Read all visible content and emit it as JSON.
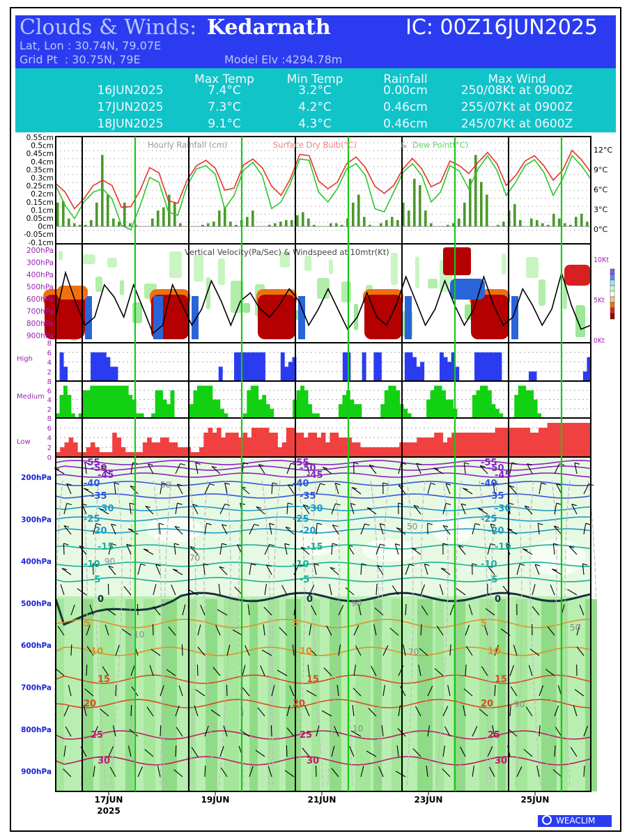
{
  "header": {
    "title_prefix": "Clouds & Winds:",
    "location": "Kedarnath",
    "ic": "IC: 00Z16JUN2025",
    "latlon": "Lat, Lon : 30.74N, 79.07E",
    "grid": "Grid Pt  : 30.75N, 79E",
    "elev": "Model Elv :4294.78m"
  },
  "summary": {
    "headers": [
      "Max Temp",
      "Min Temp",
      "Rainfall",
      "Max Wind"
    ],
    "rows": [
      {
        "date": "16JUN2025",
        "max": "7.4°C",
        "min": "3.2°C",
        "rain": "0.00cm",
        "wind": "250/08Kt at 0900Z"
      },
      {
        "date": "17JUN2025",
        "max": "7.3°C",
        "min": "4.2°C",
        "rain": "0.46cm",
        "wind": "255/07Kt at 0900Z"
      },
      {
        "date": "18JUN2025",
        "max": "9.1°C",
        "min": "4.3°C",
        "rain": "0.46cm",
        "wind": "245/07Kt at 0600Z"
      }
    ]
  },
  "chart_data": [
    {
      "type": "bar",
      "title": "Hourly Rainfall (cm)",
      "ylabel": "cm",
      "ylim": [
        -0.1,
        0.55
      ],
      "yticks": [
        "0.55cm",
        "0.5cm",
        "0.45cm",
        "0.4cm",
        "0.35cm",
        "0.3cm",
        "0.25cm",
        "0.2cm",
        "0.15cm",
        "0.1cm",
        "0.05cm",
        "0cm",
        "-0.05cm",
        "-0.1cm"
      ],
      "values": [
        0.15,
        0.16,
        0.05,
        0.02,
        0.01,
        0.01,
        0.04,
        0.15,
        0.45,
        0.2,
        0.05,
        0.03,
        0.15,
        0.02,
        0.01,
        0.0,
        0.0,
        0.05,
        0.1,
        0.12,
        0.2,
        0.15,
        0.02,
        0.0,
        0.0,
        0.0,
        0.01,
        0.02,
        0.03,
        0.1,
        0.12,
        0.03,
        0.01,
        0.04,
        0.06,
        0.1,
        0.0,
        0.0,
        0.01,
        0.02,
        0.03,
        0.04,
        0.04,
        0.07,
        0.09,
        0.05,
        0.01,
        0.0,
        0.0,
        0.02,
        0.02,
        0.01,
        0.05,
        0.15,
        0.2,
        0.06,
        0.01,
        0.0,
        0.02,
        0.04,
        0.06,
        0.04,
        0.15,
        0.1,
        0.3,
        0.26,
        0.1,
        0.02,
        0.0,
        0.0,
        0.01,
        0.02,
        0.05,
        0.15,
        0.3,
        0.45,
        0.28,
        0.2,
        0.0,
        0.01,
        0.03,
        0.1,
        0.14,
        0.04,
        0.0,
        0.05,
        0.04,
        0.02,
        0.01,
        0.08,
        0.05,
        0.02,
        0.01,
        0.06,
        0.08,
        0.03
      ]
    },
    {
      "type": "line",
      "title": "Surface Dry Bulb(°C) & Dew Point(°C)",
      "yticks": [
        "12°C",
        "9°C",
        "6°C",
        "3°C",
        "0°C"
      ],
      "ylim": [
        -1,
        13
      ],
      "series": [
        {
          "name": "Surface Dry Bulb(°C)",
          "color": "#e8302a",
          "values": [
            6.8,
            5.5,
            3.0,
            4.5,
            6.5,
            7.3,
            6.5,
            3.2,
            3.3,
            5.8,
            9.2,
            8.4,
            4.2,
            3.8,
            7.3,
            9.5,
            10.3,
            9.1,
            5.8,
            6.1,
            9.6,
            10.5,
            9.2,
            6.4,
            5.0,
            7.5,
            11.2,
            11.0,
            7.2,
            6.0,
            7.0,
            9.8,
            10.8,
            9.2,
            6.4,
            5.3,
            6.5,
            9.0,
            10.6,
            9.0,
            6.3,
            7.0,
            10.2,
            9.5,
            8.3,
            10.0,
            11.5,
            9.8,
            6.5,
            8.0,
            10.2,
            11.0,
            9.5,
            7.3,
            8.8,
            11.8,
            10.4,
            8.5
          ]
        },
        {
          "name": "Dew Point(°C)",
          "color": "#2bc62b",
          "values": [
            6.5,
            3.5,
            1.5,
            4.0,
            5.5,
            6.0,
            4.5,
            0.5,
            -0.2,
            3.5,
            7.7,
            7.0,
            2.5,
            2.0,
            6.5,
            9.0,
            9.5,
            8.2,
            3.0,
            5.0,
            8.8,
            10.0,
            8.0,
            3.0,
            4.0,
            6.8,
            10.5,
            10.3,
            5.5,
            4.0,
            6.0,
            9.0,
            9.8,
            8.0,
            3.0,
            2.5,
            5.5,
            8.5,
            9.8,
            8.0,
            4.0,
            5.5,
            9.5,
            8.7,
            6.0,
            9.0,
            11.0,
            8.8,
            5.0,
            7.0,
            9.5,
            10.4,
            8.5,
            5.0,
            7.5,
            11.0,
            9.5,
            7.5
          ]
        }
      ]
    },
    {
      "type": "heatmap",
      "title": "Vertical Velocity(Pa/Sec) & Windspeed at 10mtr(Kt)",
      "yticks": [
        "200hPa",
        "300hPa",
        "400hPa",
        "500hPa",
        "600hPa",
        "700hPa",
        "800hPa",
        "900hPa"
      ],
      "y2ticks": [
        "10Kt",
        "5Kt",
        "0Kt"
      ],
      "wind_kt": [
        3.0,
        8.5,
        5.0,
        2.0,
        3.0,
        7.0,
        5.5,
        3.0,
        7.0,
        4.0,
        1.0,
        2.0,
        7.0,
        4.5,
        2.0,
        4.0,
        7.5,
        5.0,
        2.0,
        5.0,
        6.0,
        4.0,
        3.0,
        4.5,
        6.5,
        5.0,
        2.0,
        4.0,
        6.5,
        4.0,
        1.5,
        3.0,
        6.0,
        3.0,
        2.0,
        4.5,
        8.0,
        5.0,
        2.0,
        4.0,
        7.5,
        4.5,
        2.0,
        4.0,
        8.0,
        4.5,
        2.0,
        3.0,
        6.5,
        4.5,
        2.0,
        4.0,
        8.5,
        4.5,
        1.5,
        2.0
      ]
    },
    {
      "type": "bar",
      "title": "High",
      "yticks": [
        "8",
        "6",
        "4",
        "2"
      ],
      "ylim": [
        0,
        8
      ],
      "color": "#2b3cf0",
      "values": [
        0,
        6,
        3,
        0,
        0,
        0,
        0,
        0,
        0,
        6,
        6,
        6,
        6,
        5,
        3,
        3,
        0,
        0,
        0,
        0,
        0,
        0,
        0,
        0,
        0,
        0,
        0,
        0,
        0,
        0,
        0,
        0,
        0,
        0,
        0,
        0,
        0,
        0,
        0,
        0,
        0,
        0,
        3,
        0,
        0,
        0,
        6,
        6,
        6,
        6,
        6,
        6,
        6,
        6,
        0,
        0,
        0,
        0,
        6,
        3,
        4,
        5,
        0,
        0,
        0,
        0,
        0,
        0,
        0,
        0,
        0,
        0,
        0,
        0,
        6,
        6,
        0,
        0,
        0,
        6,
        0,
        0,
        6,
        6,
        0,
        0,
        0,
        0,
        0,
        0,
        6,
        6,
        5,
        3,
        4,
        0,
        0,
        0,
        0,
        6,
        5,
        4,
        6,
        3,
        0,
        0,
        0,
        0,
        6,
        6,
        6,
        6,
        6,
        6,
        6,
        0,
        0,
        0,
        0,
        0,
        0,
        0,
        2,
        2,
        0,
        0,
        0,
        0,
        0,
        0,
        0,
        0,
        0,
        0,
        0,
        0,
        2,
        5
      ]
    },
    {
      "type": "bar",
      "title": "Medium",
      "yticks": [
        "8",
        "6",
        "4",
        "2"
      ],
      "ylim": [
        0,
        8
      ],
      "color": "#12d012",
      "values": [
        1,
        5,
        7,
        5,
        1,
        0,
        1,
        6,
        6,
        7,
        7,
        7,
        7,
        7,
        7,
        7,
        7,
        7,
        7,
        5,
        4,
        1,
        1,
        0,
        0,
        1,
        6,
        6,
        4,
        3,
        6,
        0,
        0,
        0,
        0,
        3,
        6,
        7,
        7,
        7,
        7,
        4,
        4,
        2,
        1,
        0,
        0,
        0,
        0,
        1,
        6,
        7,
        7,
        4,
        5,
        3,
        2,
        0,
        0,
        0,
        0,
        0,
        4,
        6,
        7,
        6,
        3,
        1,
        1,
        0,
        0,
        0,
        0,
        0,
        3,
        5,
        6,
        4,
        3,
        3,
        0,
        0,
        0,
        0,
        0,
        3,
        6,
        7,
        7,
        6,
        3,
        2,
        1,
        0,
        0,
        0,
        0,
        4,
        6,
        7,
        7,
        6,
        4,
        4,
        2,
        0,
        0,
        0,
        0,
        5,
        6,
        7,
        7,
        6,
        3,
        2,
        1,
        0,
        0,
        0,
        5,
        7,
        7,
        6,
        6,
        4,
        1,
        0,
        0,
        0,
        0,
        0,
        0,
        0,
        0,
        0,
        0,
        0,
        0,
        0
      ]
    },
    {
      "type": "bar",
      "title": "Low",
      "yticks": [
        "8",
        "6",
        "4",
        "2",
        "0"
      ],
      "ylim": [
        0,
        8
      ],
      "color": "#f04040",
      "values": [
        1,
        2,
        3,
        4,
        3,
        1,
        1,
        2,
        3,
        2,
        1,
        1,
        1,
        5,
        4,
        2,
        1,
        1,
        1,
        1,
        3,
        4,
        3,
        3,
        4,
        4,
        3,
        3,
        2,
        2,
        2,
        1,
        1,
        2,
        5,
        6,
        5,
        6,
        4,
        5,
        5,
        5,
        4,
        5,
        4,
        6,
        6,
        6,
        6,
        5,
        5,
        2,
        3,
        6,
        6,
        5,
        5,
        4,
        5,
        5,
        4,
        5,
        3,
        5,
        5,
        4,
        4,
        4,
        3,
        3,
        2,
        2,
        2,
        2,
        2,
        2,
        2,
        2,
        2,
        3,
        3,
        3,
        3,
        4,
        4,
        4,
        4,
        5,
        5,
        3,
        4,
        5,
        5,
        5,
        5,
        5,
        5,
        5,
        5,
        5,
        5,
        6,
        6,
        6,
        6,
        6,
        6,
        6,
        6,
        5,
        5,
        6,
        6,
        7,
        7,
        7,
        7,
        7,
        7,
        7,
        7,
        7,
        7
      ]
    },
    {
      "type": "area",
      "title": "Temperature (°C), RH contours & wind barbs",
      "yticks": [
        "200hPa",
        "300hPa",
        "400hPa",
        "500hPa",
        "600hPa",
        "700hPa",
        "800hPa",
        "900hPa"
      ],
      "temperature_labels": [
        "-55",
        "-50",
        "-45",
        "-40",
        "-35",
        "-30",
        "-25",
        "-20",
        "-15",
        "-10",
        "-5",
        "0",
        "5",
        "10",
        "15",
        "20",
        "25",
        "30"
      ],
      "rh_labels": [
        "50",
        "70",
        "90",
        "10"
      ]
    }
  ],
  "xaxis": {
    "ticks": [
      {
        "label": "17JUN",
        "sub": "2025"
      },
      {
        "label": "19JUN"
      },
      {
        "label": "21JUN"
      },
      {
        "label": "23JUN"
      },
      {
        "label": "25JUN"
      }
    ]
  },
  "colors": {
    "header_bg": "#2b3cf0",
    "table_bg": "#10c4c8",
    "day_lines": "#000000",
    "noon_lines": "#18c818",
    "rain_bars": "#4a9a2a",
    "pressure_labels": "#1c22d8",
    "level_labels": "#9a1fb0"
  },
  "logo": {
    "text": "WEACLIM"
  }
}
